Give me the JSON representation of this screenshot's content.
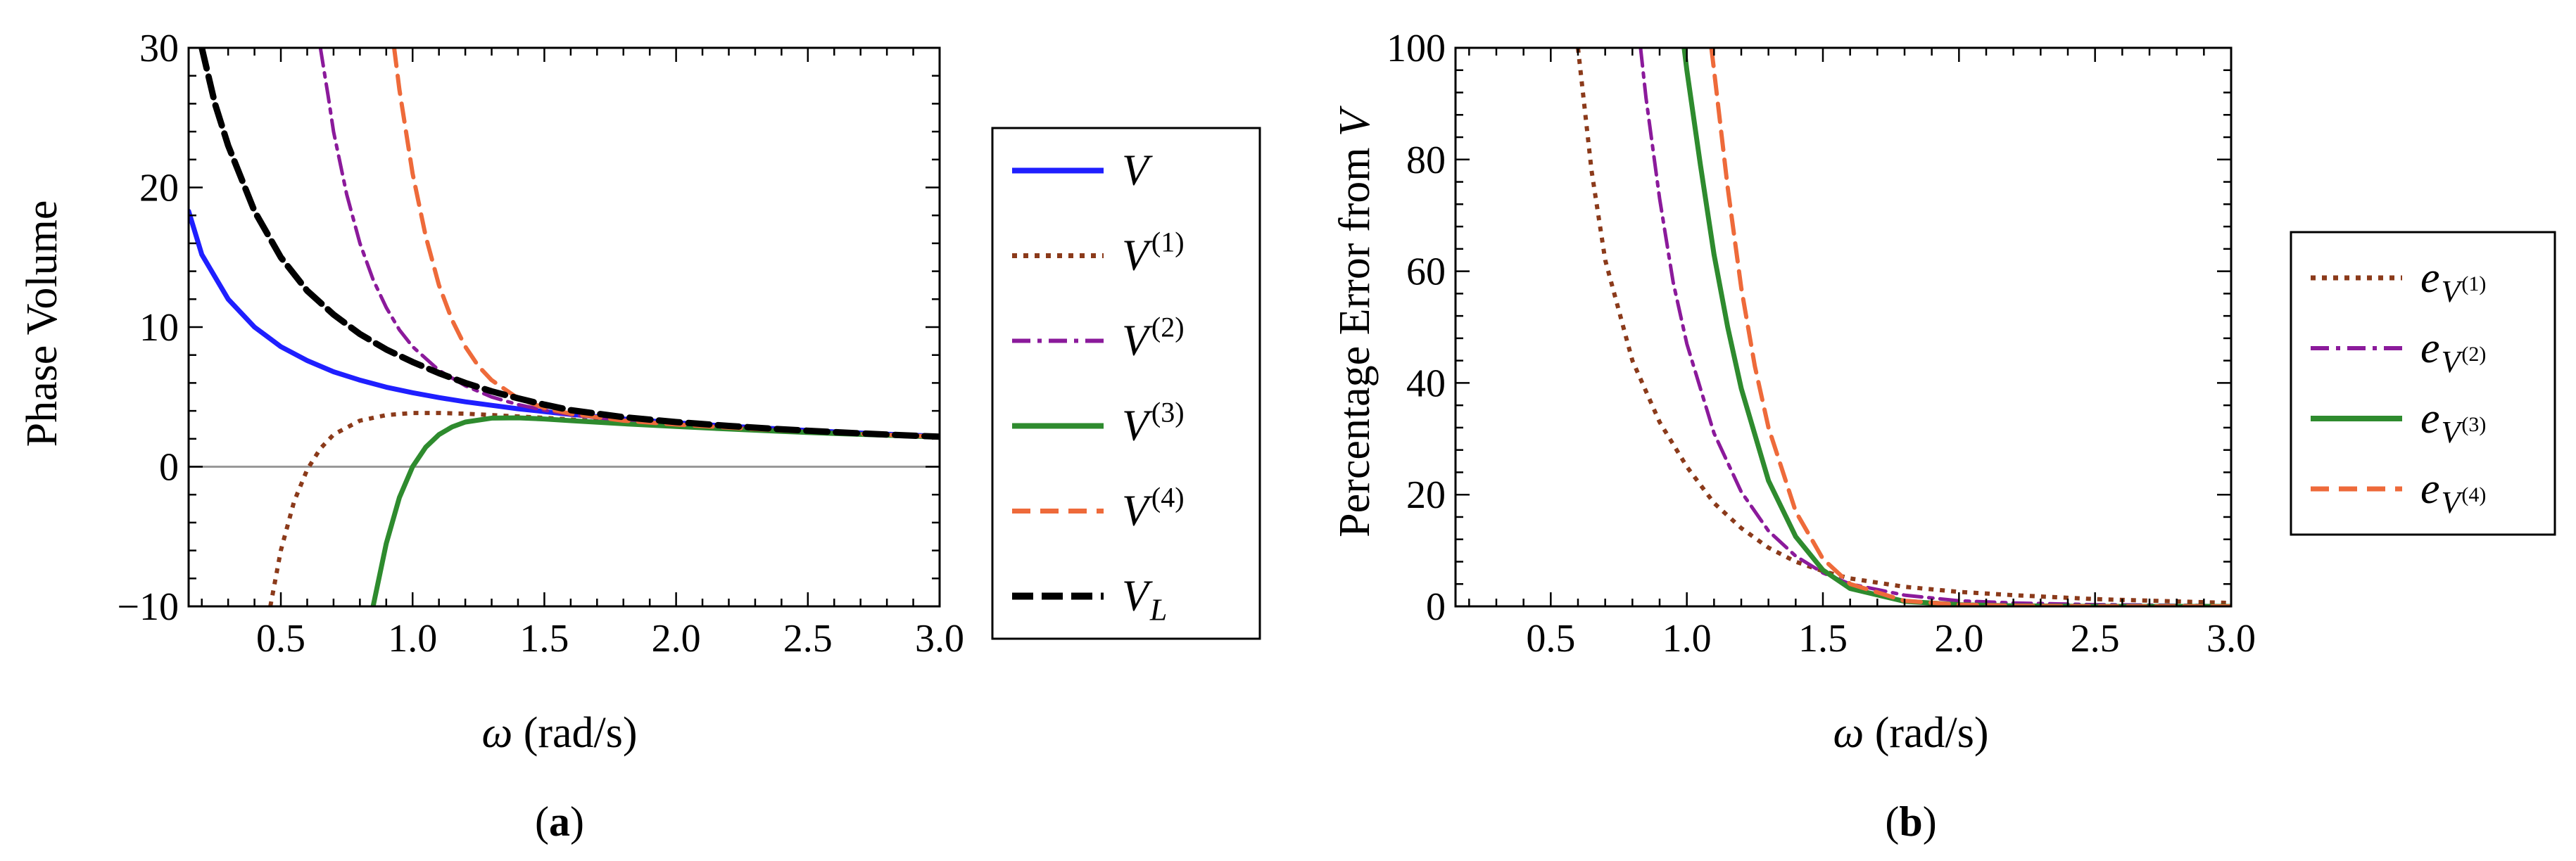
{
  "chart_data": [
    {
      "id": "a",
      "type": "line",
      "caption": "(a)",
      "caption_letter": "a",
      "xlabel_symbol": "ω",
      "xlabel_unit": "(rad/s)",
      "ylabel": "Phase Volume",
      "xlim": [
        0.15,
        3.0
      ],
      "ylim": [
        -10,
        30
      ],
      "xticks": [
        0.5,
        1.0,
        1.5,
        2.0,
        2.5,
        3.0
      ],
      "xtick_labels": [
        "0.5",
        "1.0",
        "1.5",
        "2.0",
        "2.5",
        "3.0"
      ],
      "yticks": [
        -10,
        0,
        10,
        20,
        30
      ],
      "ytick_labels": [
        "−10",
        "0",
        "10",
        "20",
        "30"
      ],
      "zero_line": true,
      "legend_position": "right",
      "series": [
        {
          "key": "V",
          "name": "V",
          "sup": "",
          "sub": "",
          "color": "#1f1fff",
          "dash": "solid",
          "x": [
            0.15,
            0.2,
            0.3,
            0.4,
            0.5,
            0.6,
            0.7,
            0.8,
            0.9,
            1.0,
            1.1,
            1.2,
            1.3,
            1.4,
            1.5,
            1.6,
            1.8,
            2.0,
            2.2,
            2.4,
            2.6,
            2.8,
            3.0
          ],
          "y": [
            18.3,
            15.2,
            12.0,
            10.0,
            8.6,
            7.6,
            6.8,
            6.2,
            5.7,
            5.3,
            4.95,
            4.65,
            4.4,
            4.15,
            3.95,
            3.75,
            3.42,
            3.15,
            2.9,
            2.7,
            2.5,
            2.33,
            2.18
          ]
        },
        {
          "key": "V1",
          "name": "V",
          "sup": "(1)",
          "sub": "",
          "color": "#8b3a1a",
          "dash": "dot",
          "x": [
            0.46,
            0.5,
            0.55,
            0.6,
            0.65,
            0.7,
            0.8,
            0.9,
            1.0,
            1.1,
            1.2,
            1.3,
            1.4,
            1.5,
            1.6,
            1.8,
            2.0,
            2.2,
            2.4,
            2.6,
            2.8,
            3.0
          ],
          "y": [
            -10,
            -6.0,
            -2.5,
            -0.2,
            1.3,
            2.3,
            3.3,
            3.7,
            3.85,
            3.85,
            3.8,
            3.7,
            3.6,
            3.5,
            3.38,
            3.15,
            2.95,
            2.75,
            2.57,
            2.42,
            2.28,
            2.15
          ]
        },
        {
          "key": "V2",
          "name": "V",
          "sup": "(2)",
          "sub": "",
          "color": "#8b1a9b",
          "dash": "dashdot",
          "x": [
            0.65,
            0.68,
            0.7,
            0.75,
            0.8,
            0.85,
            0.9,
            0.95,
            1.0,
            1.1,
            1.2,
            1.3,
            1.4,
            1.5,
            1.6,
            1.8,
            2.0,
            2.2,
            2.4,
            2.6,
            2.8,
            3.0
          ],
          "y": [
            30,
            26.5,
            24.0,
            19.5,
            16.0,
            13.4,
            11.4,
            9.8,
            8.6,
            6.9,
            5.8,
            5.0,
            4.45,
            4.05,
            3.72,
            3.3,
            3.05,
            2.82,
            2.62,
            2.45,
            2.3,
            2.16
          ]
        },
        {
          "key": "V3",
          "name": "V",
          "sup": "(3)",
          "sub": "",
          "color": "#2e8b2e",
          "dash": "solid",
          "x": [
            0.85,
            0.9,
            0.95,
            1.0,
            1.05,
            1.1,
            1.15,
            1.2,
            1.3,
            1.4,
            1.5,
            1.6,
            1.8,
            2.0,
            2.2,
            2.4,
            2.6,
            2.8,
            3.0
          ],
          "y": [
            -10,
            -5.5,
            -2.2,
            0.0,
            1.4,
            2.3,
            2.85,
            3.2,
            3.48,
            3.5,
            3.42,
            3.3,
            3.08,
            2.88,
            2.7,
            2.53,
            2.38,
            2.25,
            2.13
          ]
        },
        {
          "key": "V4",
          "name": "V",
          "sup": "(4)",
          "sub": "",
          "color": "#ee6a3a",
          "dash": "dash",
          "x": [
            0.93,
            0.95,
            1.0,
            1.05,
            1.1,
            1.15,
            1.2,
            1.25,
            1.3,
            1.4,
            1.5,
            1.6,
            1.8,
            2.0,
            2.2,
            2.4,
            2.6,
            2.8,
            3.0
          ],
          "y": [
            30,
            27.0,
            21.0,
            16.5,
            13.0,
            10.5,
            8.6,
            7.2,
            6.2,
            4.9,
            4.2,
            3.8,
            3.3,
            3.03,
            2.8,
            2.6,
            2.43,
            2.28,
            2.15
          ]
        },
        {
          "key": "VL",
          "name": "V",
          "sup": "",
          "sub": "L",
          "color": "#000000",
          "dash": "bigdash",
          "x": [
            0.2,
            0.25,
            0.3,
            0.4,
            0.5,
            0.6,
            0.7,
            0.8,
            0.9,
            1.0,
            1.1,
            1.2,
            1.3,
            1.4,
            1.5,
            1.6,
            1.8,
            2.0,
            2.2,
            2.4,
            2.6,
            2.8,
            3.0
          ],
          "y": [
            30,
            26.0,
            23.0,
            18.3,
            15.0,
            12.6,
            10.9,
            9.5,
            8.4,
            7.5,
            6.7,
            6.0,
            5.4,
            4.9,
            4.45,
            4.05,
            3.55,
            3.2,
            2.92,
            2.68,
            2.48,
            2.3,
            2.15
          ]
        }
      ]
    },
    {
      "id": "b",
      "type": "line",
      "caption": "(b)",
      "caption_letter": "b",
      "xlabel_symbol": "ω",
      "xlabel_unit": "(rad/s)",
      "ylabel": "Percentage Error from ",
      "ylabel_var": "V",
      "xlim": [
        0.15,
        3.0
      ],
      "ylim": [
        0,
        100
      ],
      "xticks": [
        0.5,
        1.0,
        1.5,
        2.0,
        2.5,
        3.0
      ],
      "xtick_labels": [
        "0.5",
        "1.0",
        "1.5",
        "2.0",
        "2.5",
        "3.0"
      ],
      "yticks": [
        0,
        20,
        40,
        60,
        80,
        100
      ],
      "ytick_labels": [
        "0",
        "20",
        "40",
        "60",
        "80",
        "100"
      ],
      "zero_line": false,
      "legend_position": "right",
      "series": [
        {
          "key": "e1",
          "name": "e",
          "sub": "V",
          "subsup": "(1)",
          "color": "#8b3a1a",
          "dash": "dot",
          "x": [
            0.6,
            0.65,
            0.7,
            0.8,
            0.9,
            1.0,
            1.1,
            1.2,
            1.3,
            1.4,
            1.5,
            1.6,
            1.8,
            2.0,
            2.2,
            2.5,
            3.0
          ],
          "y": [
            100,
            78.0,
            62.0,
            44.0,
            33.0,
            25.0,
            18.5,
            14.0,
            10.5,
            8.0,
            6.3,
            5.0,
            3.5,
            2.6,
            2.0,
            1.3,
            0.6
          ]
        },
        {
          "key": "e2",
          "name": "e",
          "sub": "V",
          "subsup": "(2)",
          "color": "#8b1a9b",
          "dash": "dashdot",
          "x": [
            0.83,
            0.85,
            0.9,
            0.95,
            1.0,
            1.1,
            1.2,
            1.3,
            1.4,
            1.5,
            1.6,
            1.8,
            2.0,
            2.2,
            2.5,
            3.0
          ],
          "y": [
            100,
            91.0,
            73.0,
            58.0,
            47.0,
            31.0,
            20.5,
            13.5,
            9.0,
            6.0,
            4.0,
            2.0,
            1.0,
            0.6,
            0.3,
            0.1
          ]
        },
        {
          "key": "e3",
          "name": "e",
          "sub": "V",
          "subsup": "(3)",
          "color": "#2e8b2e",
          "dash": "solid",
          "x": [
            0.99,
            1.0,
            1.05,
            1.1,
            1.15,
            1.2,
            1.3,
            1.4,
            1.5,
            1.6,
            1.8,
            2.0,
            2.2,
            2.5,
            3.0
          ],
          "y": [
            100,
            96.0,
            79.0,
            63.0,
            50.0,
            39.0,
            22.5,
            12.5,
            6.5,
            3.2,
            0.9,
            0.3,
            0.1,
            0.0,
            0.0
          ]
        },
        {
          "key": "e4",
          "name": "e",
          "sub": "V",
          "subsup": "(4)",
          "color": "#ee6a3a",
          "dash": "dash",
          "x": [
            1.09,
            1.1,
            1.15,
            1.2,
            1.25,
            1.3,
            1.4,
            1.5,
            1.6,
            1.8,
            2.0,
            2.2,
            2.5,
            3.0
          ],
          "y": [
            100,
            96.0,
            75.0,
            57.0,
            43.0,
            32.0,
            17.0,
            8.5,
            4.0,
            1.0,
            0.3,
            0.1,
            0.0,
            0.0
          ]
        }
      ]
    }
  ]
}
